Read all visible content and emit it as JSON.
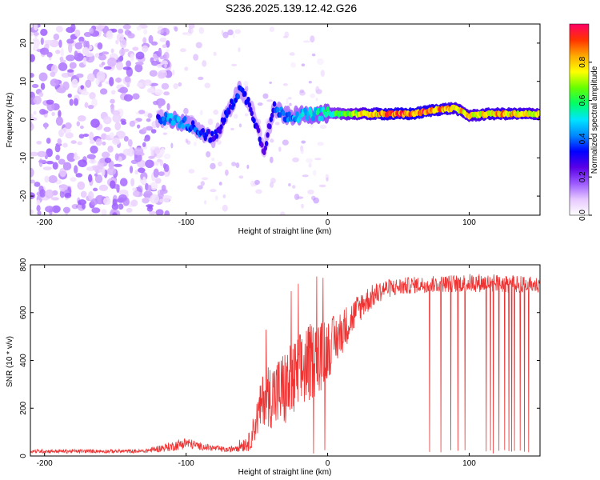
{
  "figure_title": "S236.2025.139.12.42.G26",
  "chart_data": [
    {
      "type": "heatmap",
      "title": "S236.2025.139.12.42.G26",
      "xlabel": "Height of straight line (km)",
      "ylabel": "Frequency (Hz)",
      "xlim": [
        -210,
        150
      ],
      "ylim": [
        -25,
        25
      ],
      "xticks": [
        -200,
        -100,
        0,
        100
      ],
      "yticks": [
        -20,
        -10,
        0,
        10,
        20
      ],
      "colorbar": {
        "label": "Normalized spectral amplitude",
        "range": [
          0,
          1
        ],
        "ticks": [
          0.0,
          0.2,
          0.4,
          0.6,
          0.8
        ],
        "colormap": [
          "#ffffff",
          "#e6c8ff",
          "#9b59ff",
          "#5a00e6",
          "#0000ff",
          "#0088ff",
          "#00e5ff",
          "#00ff66",
          "#66ff00",
          "#ffff00",
          "#ffaa00",
          "#ff3300",
          "#ff0066"
        ]
      },
      "noise_region_x": [
        -210,
        -120
      ],
      "ridge": [
        {
          "x": -120,
          "y": 0.5,
          "a": 0.3
        },
        {
          "x": -110,
          "y": 0.0,
          "a": 0.45
        },
        {
          "x": -100,
          "y": -1.0,
          "a": 0.4
        },
        {
          "x": -90,
          "y": -3.0,
          "a": 0.35
        },
        {
          "x": -80,
          "y": -5.0,
          "a": 0.3
        },
        {
          "x": -62,
          "y": 8.0,
          "a": 0.35
        },
        {
          "x": -55,
          "y": 4.0,
          "a": 0.3
        },
        {
          "x": -50,
          "y": -2.0,
          "a": 0.3
        },
        {
          "x": -45,
          "y": -8.0,
          "a": 0.25
        },
        {
          "x": -38,
          "y": 3.0,
          "a": 0.35
        },
        {
          "x": -30,
          "y": 1.0,
          "a": 0.4
        },
        {
          "x": -20,
          "y": 1.0,
          "a": 0.45
        },
        {
          "x": -10,
          "y": 1.5,
          "a": 0.5
        },
        {
          "x": 0,
          "y": 1.5,
          "a": 0.55
        },
        {
          "x": 10,
          "y": 1.5,
          "a": 0.6
        },
        {
          "x": 20,
          "y": 1.5,
          "a": 0.7
        },
        {
          "x": 40,
          "y": 1.5,
          "a": 0.85
        },
        {
          "x": 60,
          "y": 1.5,
          "a": 0.9
        },
        {
          "x": 75,
          "y": 2.5,
          "a": 0.85
        },
        {
          "x": 90,
          "y": 3.0,
          "a": 0.8
        },
        {
          "x": 100,
          "y": 1.0,
          "a": 0.75
        },
        {
          "x": 115,
          "y": 1.5,
          "a": 0.8
        },
        {
          "x": 130,
          "y": 1.5,
          "a": 0.8
        },
        {
          "x": 150,
          "y": 1.5,
          "a": 0.75
        }
      ]
    },
    {
      "type": "line",
      "xlabel": "Height of straight line (km)",
      "ylabel": "SNR (10 * v/v)",
      "xlim": [
        -210,
        150
      ],
      "ylim": [
        0,
        800
      ],
      "xticks": [
        -200,
        -100,
        0,
        100
      ],
      "yticks": [
        0,
        200,
        400,
        600,
        800
      ],
      "grid": false,
      "series": [
        {
          "color": "#ee3333",
          "envelope": [
            {
              "x": -210,
              "mean": 20,
              "spread": 8
            },
            {
              "x": -130,
              "mean": 20,
              "spread": 8
            },
            {
              "x": -110,
              "mean": 40,
              "spread": 20
            },
            {
              "x": -100,
              "mean": 55,
              "spread": 25
            },
            {
              "x": -90,
              "mean": 40,
              "spread": 15
            },
            {
              "x": -70,
              "mean": 25,
              "spread": 10
            },
            {
              "x": -55,
              "mean": 60,
              "spread": 40
            },
            {
              "x": -45,
              "mean": 250,
              "spread": 120
            },
            {
              "x": -35,
              "mean": 260,
              "spread": 160
            },
            {
              "x": -25,
              "mean": 300,
              "spread": 180
            },
            {
              "x": -15,
              "mean": 380,
              "spread": 170
            },
            {
              "x": -5,
              "mean": 420,
              "spread": 150
            },
            {
              "x": 5,
              "mean": 480,
              "spread": 110
            },
            {
              "x": 15,
              "mean": 560,
              "spread": 80
            },
            {
              "x": 25,
              "mean": 640,
              "spread": 60
            },
            {
              "x": 40,
              "mean": 700,
              "spread": 40
            },
            {
              "x": 60,
              "mean": 715,
              "spread": 35
            },
            {
              "x": 80,
              "mean": 720,
              "spread": 35
            },
            {
              "x": 105,
              "mean": 725,
              "spread": 40
            },
            {
              "x": 150,
              "mean": 715,
              "spread": 35
            }
          ],
          "dropouts_x": [
            72,
            80,
            87,
            92,
            97,
            112,
            115,
            117,
            121,
            125,
            128,
            130,
            132,
            136,
            139,
            142,
            -2,
            -10
          ]
        }
      ]
    }
  ]
}
